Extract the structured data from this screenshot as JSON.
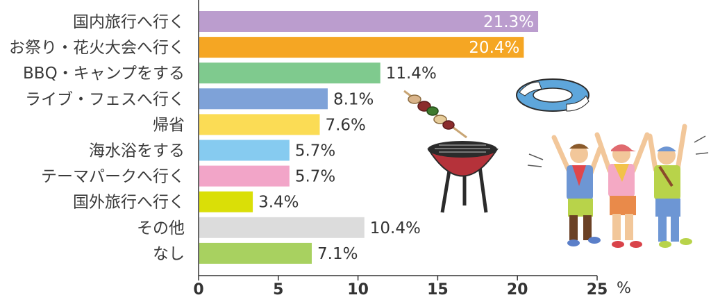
{
  "chart_data": {
    "type": "bar",
    "orientation": "horizontal",
    "unit_suffix": "%",
    "axis_unit": "%",
    "xlim": [
      0,
      25
    ],
    "x_ticks": [
      0,
      5,
      10,
      15,
      20,
      25
    ],
    "grid": false,
    "categories": [
      "国内旅行へ行く",
      "お祭り・花火大会へ行く",
      "BBQ・キャンプをする",
      "ライブ・フェスへ行く",
      "帰省",
      "海水浴をする",
      "テーマパークへ行く",
      "国外旅行へ行く",
      "その他",
      "なし"
    ],
    "values": [
      21.3,
      20.4,
      11.4,
      8.1,
      7.6,
      5.7,
      5.7,
      3.4,
      10.4,
      7.1
    ],
    "value_labels": [
      "21.3%",
      "20.4%",
      "11.4%",
      "8.1%",
      "7.6%",
      "5.7%",
      "5.7%",
      "3.4%",
      "10.4%",
      "7.1%"
    ],
    "bar_colors": [
      "#bb9dce",
      "#f5a623",
      "#7fca8e",
      "#7ea2d8",
      "#fbdc55",
      "#86cbf0",
      "#f2a5c8",
      "#dadf07",
      "#dcdcdc",
      "#a8d160"
    ],
    "label_inside": [
      true,
      true,
      false,
      false,
      false,
      false,
      false,
      false,
      false,
      false
    ]
  },
  "decorations": {
    "illustrations": [
      "grill-icon",
      "skewer-icon",
      "swim-ring-icon",
      "cheering-people-icon"
    ]
  }
}
